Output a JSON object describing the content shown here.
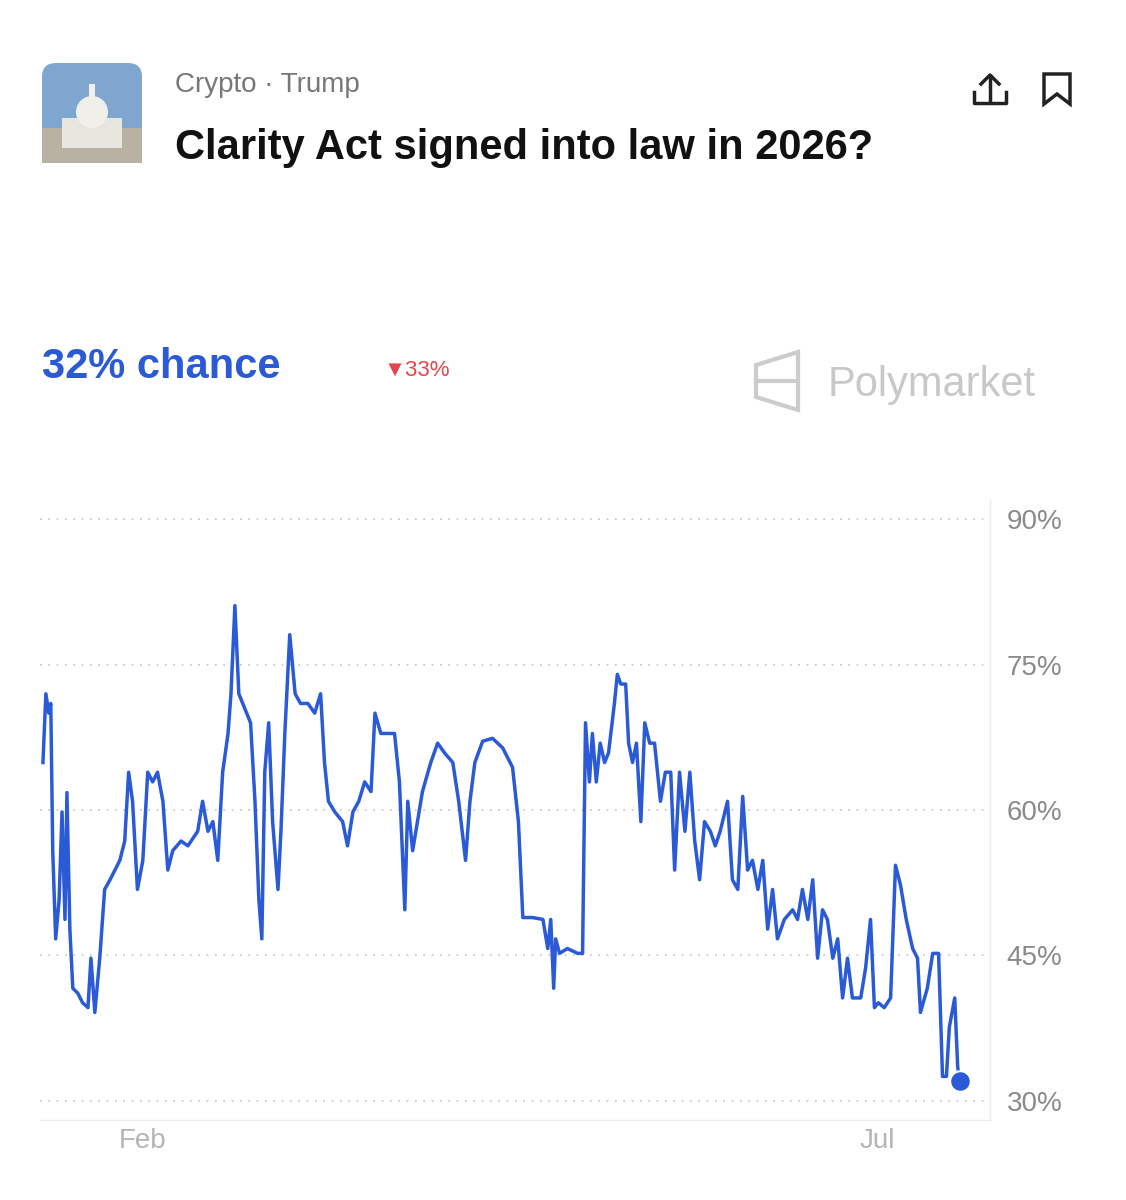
{
  "chart_data": {
    "type": "line",
    "subtitle": "Crypto · Trump",
    "title": "Clarity Act signed into law in 2026?",
    "annotations": [
      "32% chance",
      "▼33%",
      "Polymarket"
    ],
    "color": "#2a5ad6",
    "x": [
      11.6,
      12.2,
      12.8,
      13.2,
      13.6,
      14.2,
      14.9,
      15.5,
      16.1,
      16.5,
      17.1,
      17.7,
      18.7,
      19.7,
      20.8,
      21.4,
      22.2,
      23.2,
      24.2,
      25.3,
      26.3,
      27.3,
      28.3,
      29.1,
      29.9,
      30.9,
      32.0,
      33.0,
      34.0,
      35.0,
      36.1,
      37.1,
      38.1,
      39.8,
      41.2,
      43.2,
      44.2,
      45.3,
      46.3,
      47.3,
      48.3,
      49.4,
      50.0,
      50.8,
      51.6,
      52.4,
      54.0,
      54.9,
      55.7,
      56.3,
      56.9,
      57.7,
      58.5,
      59.6,
      60.2,
      61.0,
      62.0,
      63.1,
      64.2,
      65.7,
      67.1,
      68.3,
      69.1,
      69.9,
      71.2,
      72.8,
      73.8,
      74.9,
      76.1,
      77.3,
      78.6,
      79.4,
      80.6,
      82.0,
      83.4,
      84.4,
      85.5,
      86.1,
      87.1,
      89.1,
      90.8,
      92.2,
      93.6,
      95.3,
      96.5,
      97.9,
      98.8,
      99.8,
      101.4,
      103.4,
      105.5,
      107.5,
      108.7,
      109.6,
      111.6,
      113.7,
      114.7,
      115.3,
      115.9,
      116.3,
      117.1,
      118.7,
      120.8,
      121.8,
      122.4,
      123.2,
      123.8,
      124.6,
      125.4,
      126.3,
      127.1,
      128.3,
      128.9,
      129.6,
      130.6,
      131.2,
      132.0,
      132.8,
      133.7,
      134.5,
      135.5,
      136.5,
      137.7,
      138.7,
      139.8,
      140.6,
      141.6,
      142.7,
      143.7,
      144.7,
      145.7,
      146.7,
      147.9,
      148.9,
      149.9,
      151.4,
      152.4,
      153.5,
      154.5,
      155.5,
      156.5,
      157.6,
      158.6,
      159.6,
      160.6,
      161.6,
      163.0,
      164.7,
      165.7,
      166.7,
      167.8,
      168.8,
      169.8,
      170.8,
      171.8,
      172.9,
      173.9,
      174.9,
      175.9,
      176.9,
      178.6,
      179.6,
      180.6,
      181.4,
      182.2,
      183.4,
      184.7,
      185.7,
      186.7,
      187.9,
      189.2,
      190.2,
      190.8,
      192.2,
      193.3,
      194.5,
      195.3,
      196.1,
      196.7,
      197.8,
      198.4,
      198.8
    ],
    "values": [
      64.9,
      72.0,
      70.0,
      71.0,
      55.8,
      46.7,
      50.7,
      59.8,
      48.7,
      61.8,
      47.7,
      41.6,
      41.1,
      40.1,
      39.6,
      44.7,
      39.1,
      44.7,
      51.8,
      52.8,
      53.8,
      54.8,
      56.8,
      63.9,
      60.9,
      51.8,
      54.8,
      63.9,
      62.9,
      63.9,
      60.9,
      53.8,
      55.8,
      56.8,
      56.3,
      57.8,
      60.9,
      57.8,
      58.8,
      54.8,
      63.9,
      67.9,
      72.0,
      81.1,
      72.0,
      71.0,
      69.0,
      60.9,
      50.7,
      46.7,
      63.9,
      69.0,
      58.8,
      51.8,
      57.8,
      67.9,
      78.1,
      72.0,
      71.0,
      71.0,
      70.0,
      72.0,
      64.9,
      60.9,
      59.8,
      58.8,
      56.3,
      59.8,
      60.9,
      62.9,
      61.9,
      70.0,
      67.9,
      67.9,
      67.9,
      62.9,
      49.7,
      60.9,
      55.8,
      61.9,
      64.9,
      66.9,
      65.9,
      64.9,
      60.9,
      54.8,
      60.9,
      64.9,
      67.1,
      67.4,
      66.4,
      64.4,
      58.8,
      48.9,
      48.9,
      48.7,
      45.7,
      48.7,
      41.6,
      46.7,
      45.2,
      45.7,
      45.2,
      45.2,
      69.0,
      62.9,
      67.9,
      62.9,
      66.9,
      64.9,
      65.9,
      71.0,
      74.0,
      73.0,
      73.0,
      66.9,
      64.9,
      66.9,
      58.8,
      69.0,
      66.9,
      66.9,
      60.9,
      63.9,
      63.9,
      53.8,
      63.9,
      57.8,
      63.9,
      56.8,
      52.8,
      58.8,
      57.8,
      56.3,
      57.8,
      60.9,
      52.8,
      51.8,
      61.4,
      53.8,
      54.8,
      51.8,
      54.8,
      47.7,
      51.8,
      46.7,
      48.7,
      49.7,
      48.7,
      51.8,
      48.7,
      52.8,
      44.7,
      49.7,
      48.7,
      44.7,
      46.7,
      40.6,
      44.7,
      40.6,
      40.6,
      43.7,
      48.7,
      39.6,
      40.1,
      39.6,
      40.6,
      54.3,
      52.3,
      48.7,
      45.7,
      44.7,
      39.1,
      41.6,
      45.2,
      45.2,
      32.5,
      32.5,
      37.6,
      40.6,
      33.5,
      32.0
    ],
    "xlim": [
      11,
      205
    ],
    "xticks": [
      {
        "value": 32,
        "label": "Feb"
      },
      {
        "value": 182,
        "label": "Jul"
      }
    ],
    "ylim": [
      28,
      92
    ],
    "yticks": [
      {
        "value": 30,
        "label": "30%"
      },
      {
        "value": 45,
        "label": "45%"
      },
      {
        "value": 60,
        "label": "60%"
      },
      {
        "value": 75,
        "label": "75%"
      },
      {
        "value": 90,
        "label": "90%"
      }
    ],
    "grid": true
  }
}
